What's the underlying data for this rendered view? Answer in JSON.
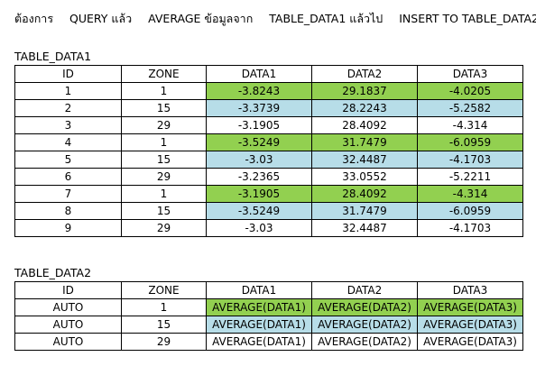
{
  "heading": {
    "words": [
      "ต้องการ",
      "QUERY แล้ว",
      "AVERAGE ข้อมูลจาก",
      "TABLE_DATA1 แล้วไป",
      "INSERT TO TABLE_DATA2"
    ]
  },
  "table1": {
    "label": "TABLE_DATA1",
    "headers": [
      "ID",
      "ZONE",
      "DATA1",
      "DATA2",
      "DATA3"
    ],
    "rows": [
      {
        "id": "1",
        "zone": "1",
        "d1": "-3.8243",
        "d2": "29.1837",
        "d3": "-4.0205",
        "fill": "#92d050"
      },
      {
        "id": "2",
        "zone": "15",
        "d1": "-3.3739",
        "d2": "28.2243",
        "d3": "-5.2582",
        "fill": "#b7dde8"
      },
      {
        "id": "3",
        "zone": "29",
        "d1": "-3.1905",
        "d2": "28.4092",
        "d3": "-4.314",
        "fill": "#ffffff"
      },
      {
        "id": "4",
        "zone": "1",
        "d1": "-3.5249",
        "d2": "31.7479",
        "d3": "-6.0959",
        "fill": "#92d050"
      },
      {
        "id": "5",
        "zone": "15",
        "d1": "-3.03",
        "d2": "32.4487",
        "d3": "-4.1703",
        "fill": "#b7dde8"
      },
      {
        "id": "6",
        "zone": "29",
        "d1": "-3.2365",
        "d2": "33.0552",
        "d3": "-5.2211",
        "fill": "#ffffff"
      },
      {
        "id": "7",
        "zone": "1",
        "d1": "-3.1905",
        "d2": "28.4092",
        "d3": "-4.314",
        "fill": "#92d050"
      },
      {
        "id": "8",
        "zone": "15",
        "d1": "-3.5249",
        "d2": "31.7479",
        "d3": "-6.0959",
        "fill": "#b7dde8"
      },
      {
        "id": "9",
        "zone": "29",
        "d1": "-3.03",
        "d2": "32.4487",
        "d3": "-4.1703",
        "fill": "#ffffff"
      }
    ]
  },
  "table2": {
    "label": "TABLE_DATA2",
    "headers": [
      "ID",
      "ZONE",
      "DATA1",
      "DATA2",
      "DATA3"
    ],
    "rows": [
      {
        "id": "AUTO",
        "zone": "1",
        "d1": "AVERAGE(DATA1)",
        "d2": "AVERAGE(DATA2)",
        "d3": "AVERAGE(DATA3)",
        "fill": "#92d050"
      },
      {
        "id": "AUTO",
        "zone": "15",
        "d1": "AVERAGE(DATA1)",
        "d2": "AVERAGE(DATA2)",
        "d3": "AVERAGE(DATA3)",
        "fill": "#b7dde8"
      },
      {
        "id": "AUTO",
        "zone": "29",
        "d1": "AVERAGE(DATA1)",
        "d2": "AVERAGE(DATA2)",
        "d3": "AVERAGE(DATA3)",
        "fill": "#ffffff"
      }
    ]
  }
}
